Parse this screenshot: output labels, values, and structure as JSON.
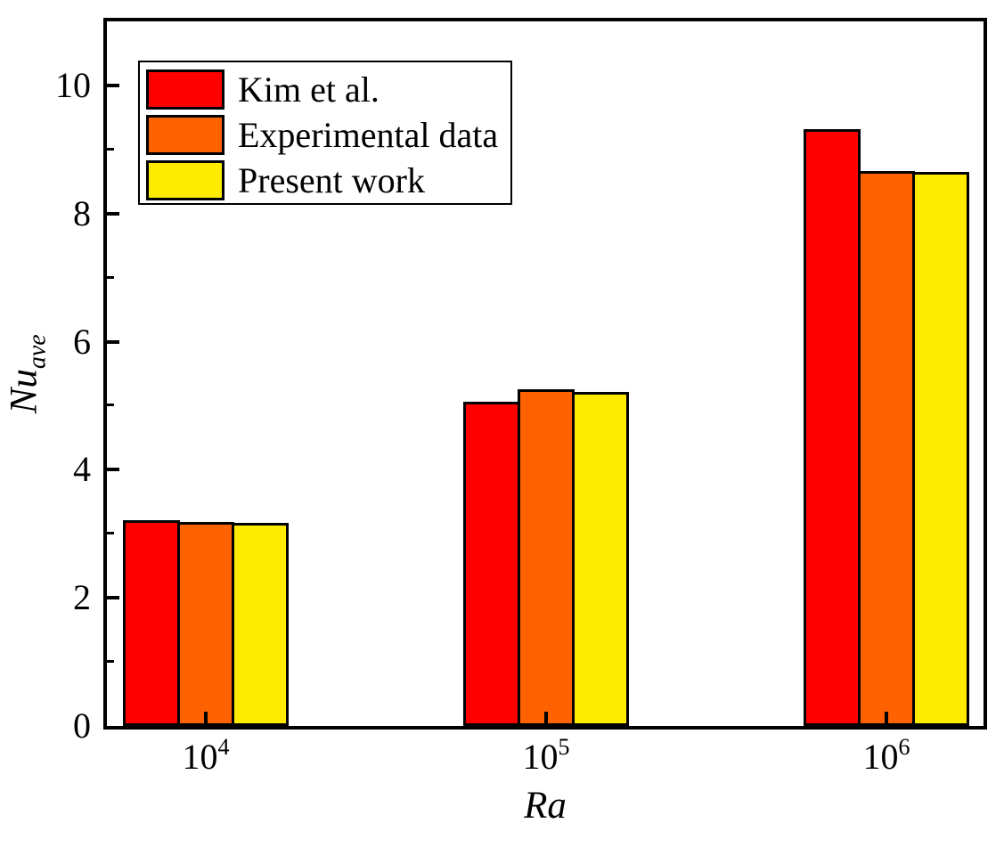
{
  "figure": {
    "background": "#ffffff"
  },
  "chart_data": {
    "type": "bar",
    "title": "",
    "xlabel": "Ra",
    "ylabel": "Nu_ave",
    "ylabel_main": "Nu",
    "ylabel_sub": "ave",
    "categories": [
      "10^4",
      "10^5",
      "10^6"
    ],
    "category_base": "10",
    "category_exponents": [
      "4",
      "5",
      "6"
    ],
    "series": [
      {
        "name": "Kim et al.",
        "color": "#ff0000",
        "values": [
          3.21,
          5.06,
          9.32
        ]
      },
      {
        "name": "Experimental data",
        "color": "#ff6200",
        "values": [
          3.19,
          5.25,
          8.67
        ]
      },
      {
        "name": "Present work",
        "color": "#ffeb00",
        "values": [
          3.17,
          5.22,
          8.65
        ]
      }
    ],
    "ylim": [
      0,
      11
    ],
    "y_major_ticks": [
      0,
      2,
      4,
      6,
      8,
      10
    ],
    "y_minor_ticks": [
      1,
      3,
      5,
      7,
      9
    ],
    "grid": false,
    "legend_position": "top-left",
    "axis_color": "#000000",
    "bar_border_color": "#000000"
  }
}
